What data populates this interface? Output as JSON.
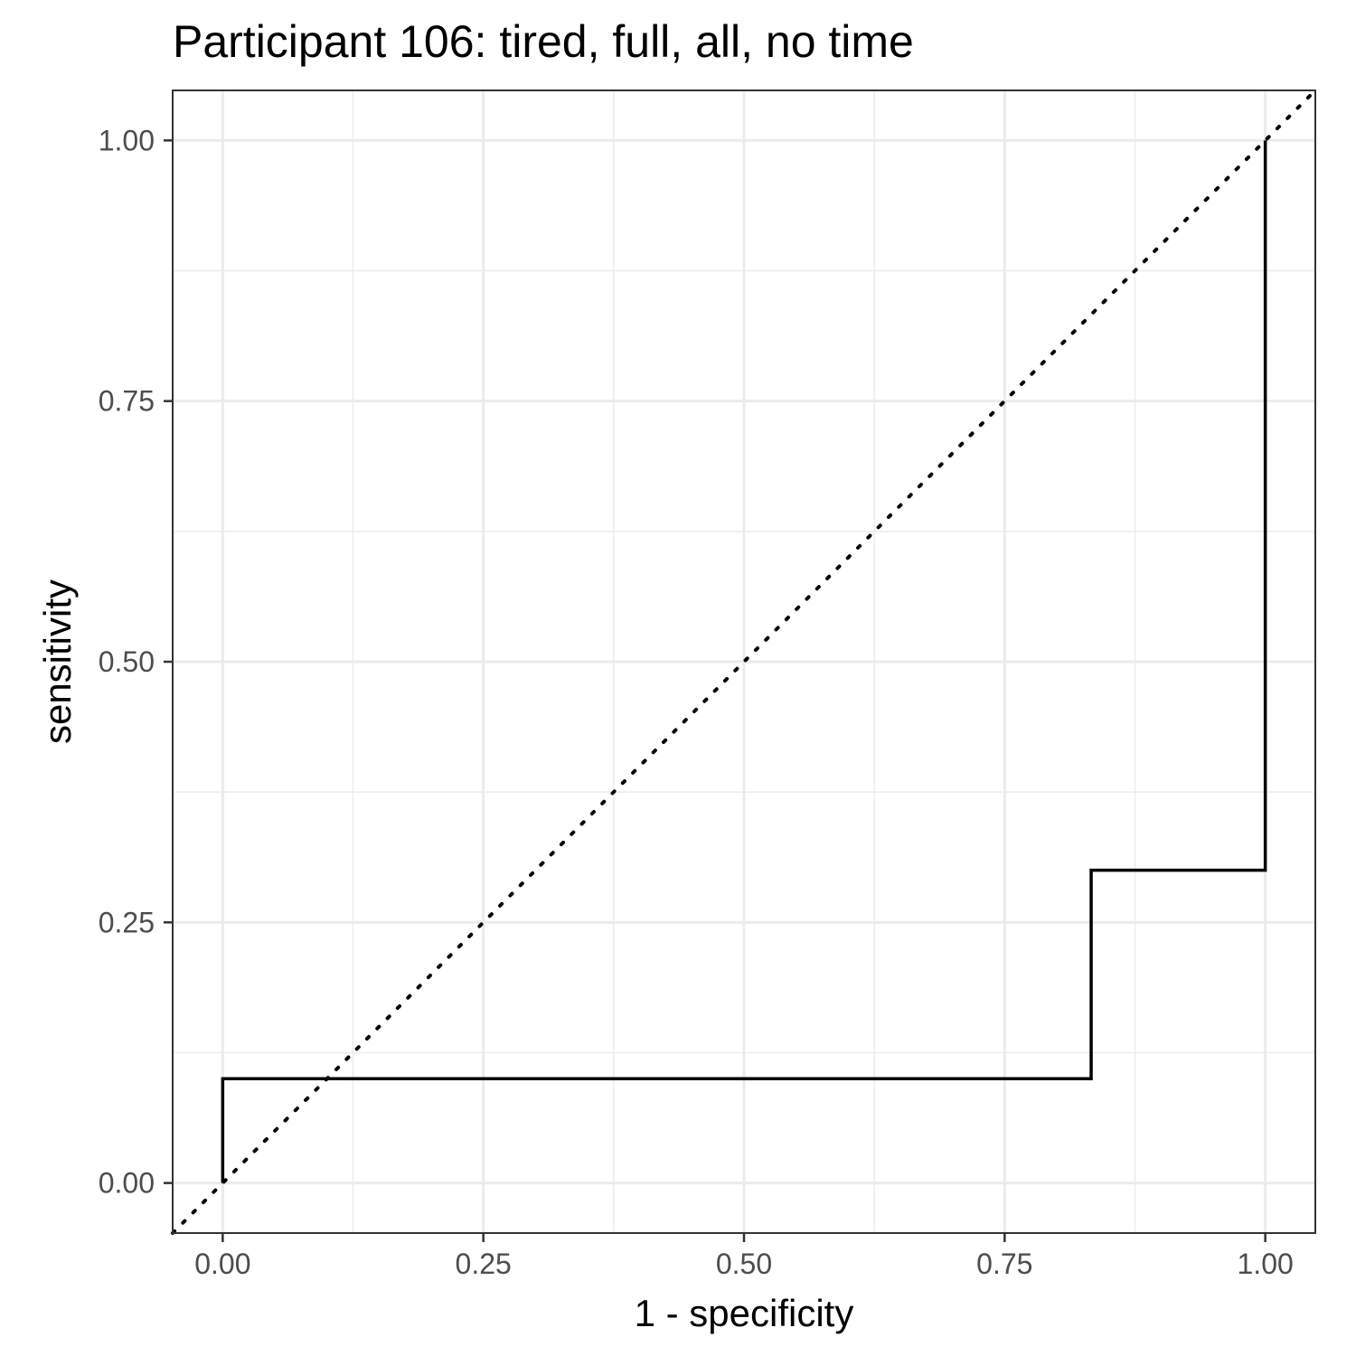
{
  "chart_data": {
    "type": "line",
    "title": "Participant 106: tired, full, all, no time",
    "xlabel": "1 - specificity",
    "ylabel": "sensitivity",
    "xlim": [
      -0.048,
      1.048
    ],
    "ylim": [
      -0.048,
      1.048
    ],
    "x_ticks": [
      0,
      0.25,
      0.5,
      0.75,
      1
    ],
    "x_tick_labels": [
      "0.00",
      "0.25",
      "0.50",
      "0.75",
      "1.00"
    ],
    "y_ticks": [
      0,
      0.25,
      0.5,
      0.75,
      1
    ],
    "y_tick_labels": [
      "0.00",
      "0.25",
      "0.50",
      "0.75",
      "1.00"
    ],
    "grid": true,
    "series": [
      {
        "style": "step",
        "color": "#000000",
        "points": [
          {
            "x": 0,
            "y": 0
          },
          {
            "x": 0,
            "y": 0.1
          },
          {
            "x": 0.833,
            "y": 0.1
          },
          {
            "x": 0.833,
            "y": 0.3
          },
          {
            "x": 1,
            "y": 0.3
          },
          {
            "x": 1,
            "y": 1
          }
        ]
      },
      {
        "style": "dotted",
        "color": "#000000",
        "points": [
          {
            "x": -0.048,
            "y": -0.048
          },
          {
            "x": 1.048,
            "y": 1.048
          }
        ]
      }
    ]
  }
}
